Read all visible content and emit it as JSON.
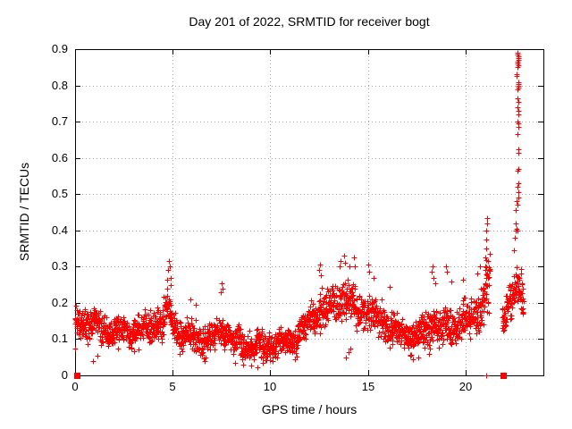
{
  "chart_data": {
    "type": "scatter",
    "title": "Day 201 of 2022, SRMTID for receiver bogt",
    "xlabel": "GPS time / hours",
    "ylabel": "SRMTID / TECUs",
    "xlim": [
      0,
      24
    ],
    "ylim": [
      0,
      0.9
    ],
    "xticks": {
      "values": [
        0,
        5,
        10,
        15,
        20
      ],
      "labels": [
        "0",
        "5",
        "10",
        "15",
        "20"
      ]
    },
    "yticks": {
      "values": [
        0,
        0.1,
        0.2,
        0.3,
        0.4,
        0.5,
        0.6,
        0.7,
        0.8,
        0.9
      ],
      "labels": [
        "0",
        "0.1",
        "0.2",
        "0.3",
        "0.4",
        "0.5",
        "0.6",
        "0.7",
        "0.8",
        "0.9"
      ]
    },
    "grid": true,
    "legend": false,
    "marker": "plus",
    "marker_color": "#ff0000",
    "grid_color": "#a8a8a8",
    "axis_color": "#000000",
    "background_color": "#ffffff",
    "band": {
      "seed": 201,
      "segments": [
        [
          0.02,
          21.25
        ],
        [
          21.88,
          22.98
        ]
      ],
      "steps": [
        0.02,
        0.031,
        0.052
      ],
      "mean": [
        [
          0,
          0.155
        ],
        [
          0.5,
          0.15
        ],
        [
          1,
          0.14
        ],
        [
          1.5,
          0.125
        ],
        [
          2,
          0.12
        ],
        [
          2.5,
          0.125
        ],
        [
          3,
          0.12
        ],
        [
          3.5,
          0.13
        ],
        [
          4,
          0.135
        ],
        [
          4.5,
          0.15
        ],
        [
          4.65,
          0.17
        ],
        [
          4.8,
          0.2
        ],
        [
          4.95,
          0.16
        ],
        [
          5.2,
          0.12
        ],
        [
          5.8,
          0.11
        ],
        [
          6.5,
          0.1
        ],
        [
          7,
          0.105
        ],
        [
          7.5,
          0.125
        ],
        [
          7.9,
          0.1
        ],
        [
          8.5,
          0.09
        ],
        [
          9,
          0.082
        ],
        [
          9.5,
          0.078
        ],
        [
          10,
          0.085
        ],
        [
          10.7,
          0.09
        ],
        [
          11.3,
          0.1
        ],
        [
          11.8,
          0.14
        ],
        [
          12.2,
          0.165
        ],
        [
          12.8,
          0.18
        ],
        [
          13.3,
          0.2
        ],
        [
          13.8,
          0.21
        ],
        [
          14.2,
          0.195
        ],
        [
          14.7,
          0.18
        ],
        [
          15.2,
          0.17
        ],
        [
          15.7,
          0.15
        ],
        [
          16.2,
          0.13
        ],
        [
          16.8,
          0.115
        ],
        [
          17.4,
          0.105
        ],
        [
          17.9,
          0.115
        ],
        [
          18.3,
          0.145
        ],
        [
          18.7,
          0.125
        ],
        [
          19.2,
          0.14
        ],
        [
          19.7,
          0.15
        ],
        [
          20.2,
          0.16
        ],
        [
          20.7,
          0.18
        ],
        [
          21.0,
          0.23
        ],
        [
          21.25,
          0.25
        ],
        [
          21.9,
          0.17
        ],
        [
          22.3,
          0.2
        ],
        [
          22.6,
          0.245
        ],
        [
          22.9,
          0.235
        ]
      ],
      "spread": [
        [
          0,
          0.042
        ],
        [
          1.5,
          0.038
        ],
        [
          3,
          0.04
        ],
        [
          4.5,
          0.045
        ],
        [
          5.5,
          0.038
        ],
        [
          7,
          0.04
        ],
        [
          8,
          0.035
        ],
        [
          9,
          0.035
        ],
        [
          10,
          0.035
        ],
        [
          11,
          0.038
        ],
        [
          12,
          0.045
        ],
        [
          13,
          0.05
        ],
        [
          14,
          0.052
        ],
        [
          15,
          0.048
        ],
        [
          16,
          0.04
        ],
        [
          17,
          0.035
        ],
        [
          18,
          0.045
        ],
        [
          18.4,
          0.06
        ],
        [
          19,
          0.05
        ],
        [
          20,
          0.05
        ],
        [
          20.8,
          0.06
        ],
        [
          21.1,
          0.08
        ],
        [
          21.25,
          0.08
        ],
        [
          21.9,
          0.045
        ],
        [
          22.4,
          0.055
        ],
        [
          22.9,
          0.05
        ]
      ]
    },
    "outliers": [
      [
        0.02,
        0.075
      ],
      [
        0.9,
        0.04
      ],
      [
        1.15,
        0.055
      ],
      [
        4.7,
        0.24
      ],
      [
        4.74,
        0.265
      ],
      [
        4.78,
        0.29
      ],
      [
        4.8,
        0.315
      ],
      [
        4.84,
        0.3
      ],
      [
        4.88,
        0.27
      ],
      [
        4.92,
        0.25
      ],
      [
        5.9,
        0.21
      ],
      [
        6.2,
        0.195
      ],
      [
        7.45,
        0.23
      ],
      [
        7.52,
        0.255
      ],
      [
        7.58,
        0.24
      ],
      [
        8.2,
        0.035
      ],
      [
        8.6,
        0.03
      ],
      [
        9.0,
        0.028
      ],
      [
        9.35,
        0.022
      ],
      [
        9.6,
        0.035
      ],
      [
        10.1,
        0.04
      ],
      [
        12.5,
        0.29
      ],
      [
        12.55,
        0.305
      ],
      [
        12.6,
        0.275
      ],
      [
        13.55,
        0.3
      ],
      [
        13.62,
        0.315
      ],
      [
        13.8,
        0.33
      ],
      [
        13.85,
        0.31
      ],
      [
        14.05,
        0.3
      ],
      [
        14.3,
        0.325
      ],
      [
        14.35,
        0.3
      ],
      [
        13.9,
        0.05
      ],
      [
        14.0,
        0.065
      ],
      [
        14.1,
        0.075
      ],
      [
        15.0,
        0.305
      ],
      [
        15.05,
        0.285
      ],
      [
        15.3,
        0.27
      ],
      [
        16.1,
        0.245
      ],
      [
        17.3,
        0.045
      ],
      [
        17.6,
        0.05
      ],
      [
        18.28,
        0.285
      ],
      [
        18.33,
        0.3
      ],
      [
        18.38,
        0.27
      ],
      [
        18.45,
        0.255
      ],
      [
        19.0,
        0.3
      ],
      [
        19.05,
        0.285
      ],
      [
        19.3,
        0.26
      ],
      [
        19.9,
        0.265
      ],
      [
        20.6,
        0.28
      ],
      [
        20.75,
        0.3
      ],
      [
        21.0,
        0.3
      ],
      [
        21.02,
        0.325
      ],
      [
        21.05,
        0.35
      ],
      [
        21.07,
        0.375
      ],
      [
        21.09,
        0.4
      ],
      [
        21.1,
        0.42
      ],
      [
        21.11,
        0.435
      ],
      [
        21.03,
        0.29
      ],
      [
        22.5,
        0.345
      ],
      [
        22.55,
        0.38
      ],
      [
        22.58,
        0.42
      ],
      [
        22.6,
        0.4
      ],
      [
        22.64,
        0.405
      ],
      [
        22.68,
        0.4
      ],
      [
        22.6,
        0.455
      ],
      [
        22.66,
        0.47
      ],
      [
        22.62,
        0.48
      ],
      [
        22.7,
        0.49
      ],
      [
        22.72,
        0.505
      ],
      [
        22.66,
        0.52
      ],
      [
        22.7,
        0.53
      ],
      [
        22.68,
        0.565
      ],
      [
        22.72,
        0.57
      ],
      [
        22.7,
        0.615
      ],
      [
        22.74,
        0.625
      ],
      [
        22.66,
        0.665
      ],
      [
        22.7,
        0.685
      ],
      [
        22.72,
        0.695
      ],
      [
        22.69,
        0.7
      ],
      [
        22.73,
        0.72
      ],
      [
        22.7,
        0.73
      ],
      [
        22.67,
        0.74
      ],
      [
        22.71,
        0.755
      ],
      [
        22.69,
        0.765
      ],
      [
        22.68,
        0.79
      ],
      [
        22.72,
        0.795
      ],
      [
        22.7,
        0.8
      ],
      [
        22.71,
        0.805
      ],
      [
        22.74,
        0.81
      ],
      [
        22.61,
        0.825
      ],
      [
        22.64,
        0.83
      ],
      [
        22.67,
        0.85
      ],
      [
        22.7,
        0.855
      ],
      [
        22.66,
        0.86
      ],
      [
        22.69,
        0.865
      ],
      [
        22.72,
        0.87
      ],
      [
        22.7,
        0.875
      ],
      [
        22.71,
        0.88
      ],
      [
        22.68,
        0.885
      ],
      [
        22.65,
        0.89
      ]
    ],
    "zero_plus_markers": [
      [
        21.05,
        0
      ]
    ],
    "zero_square_markers": [
      [
        0.1,
        0
      ],
      [
        21.95,
        0
      ]
    ]
  }
}
